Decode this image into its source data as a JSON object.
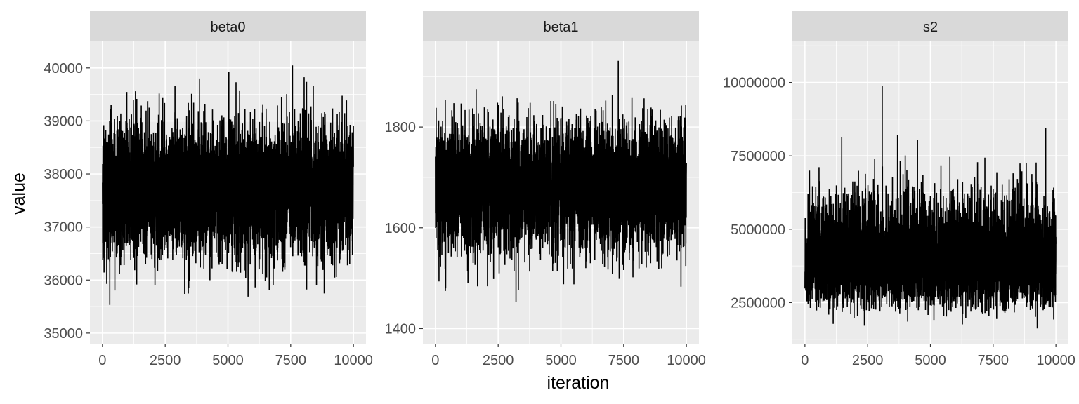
{
  "chart_data": {
    "type": "line",
    "xlabel": "iteration",
    "ylabel": "value",
    "grid": true,
    "line_color": "#000000",
    "panel_background": "#ebebeb",
    "strip_background": "#d9d9d9",
    "panels": [
      {
        "name": "beta0",
        "xlim": [
          -500,
          10500
        ],
        "ylim": [
          34800,
          40500
        ],
        "x_ticks": [
          0,
          2500,
          5000,
          7500,
          10000
        ],
        "x_tick_labels": [
          "0",
          "2500",
          "5000",
          "7500",
          "10000"
        ],
        "y_ticks": [
          35000,
          36000,
          37000,
          38000,
          39000,
          40000
        ],
        "y_tick_labels": [
          "35000",
          "36000",
          "37000",
          "38000",
          "39000",
          "40000"
        ],
        "iterations": 10000,
        "mean": 37700,
        "sd": 620,
        "min": 35000,
        "max": 40230
      },
      {
        "name": "beta1",
        "xlim": [
          -500,
          10500
        ],
        "ylim": [
          1370,
          1970
        ],
        "x_ticks": [
          0,
          2500,
          5000,
          7500,
          10000
        ],
        "x_tick_labels": [
          "0",
          "2500",
          "5000",
          "7500",
          "10000"
        ],
        "y_ticks": [
          1400,
          1600,
          1800
        ],
        "y_tick_labels": [
          "1400",
          "1600",
          "1800"
        ],
        "iterations": 10000,
        "mean": 1680,
        "sd": 62,
        "min": 1395,
        "max": 1940
      },
      {
        "name": "s2",
        "xlim": [
          -500,
          10500
        ],
        "ylim": [
          1100000,
          11400000
        ],
        "x_ticks": [
          0,
          2500,
          5000,
          7500,
          10000
        ],
        "x_tick_labels": [
          "0",
          "2500",
          "5000",
          "7500",
          "10000"
        ],
        "y_ticks": [
          2500000,
          5000000,
          7500000,
          10000000
        ],
        "y_tick_labels": [
          "2500000",
          "5000000",
          "7500000",
          "10000000"
        ],
        "iterations": 10000,
        "mean": 4100000,
        "sd": 900000,
        "min": 1500000,
        "max": 10000000
      }
    ]
  }
}
